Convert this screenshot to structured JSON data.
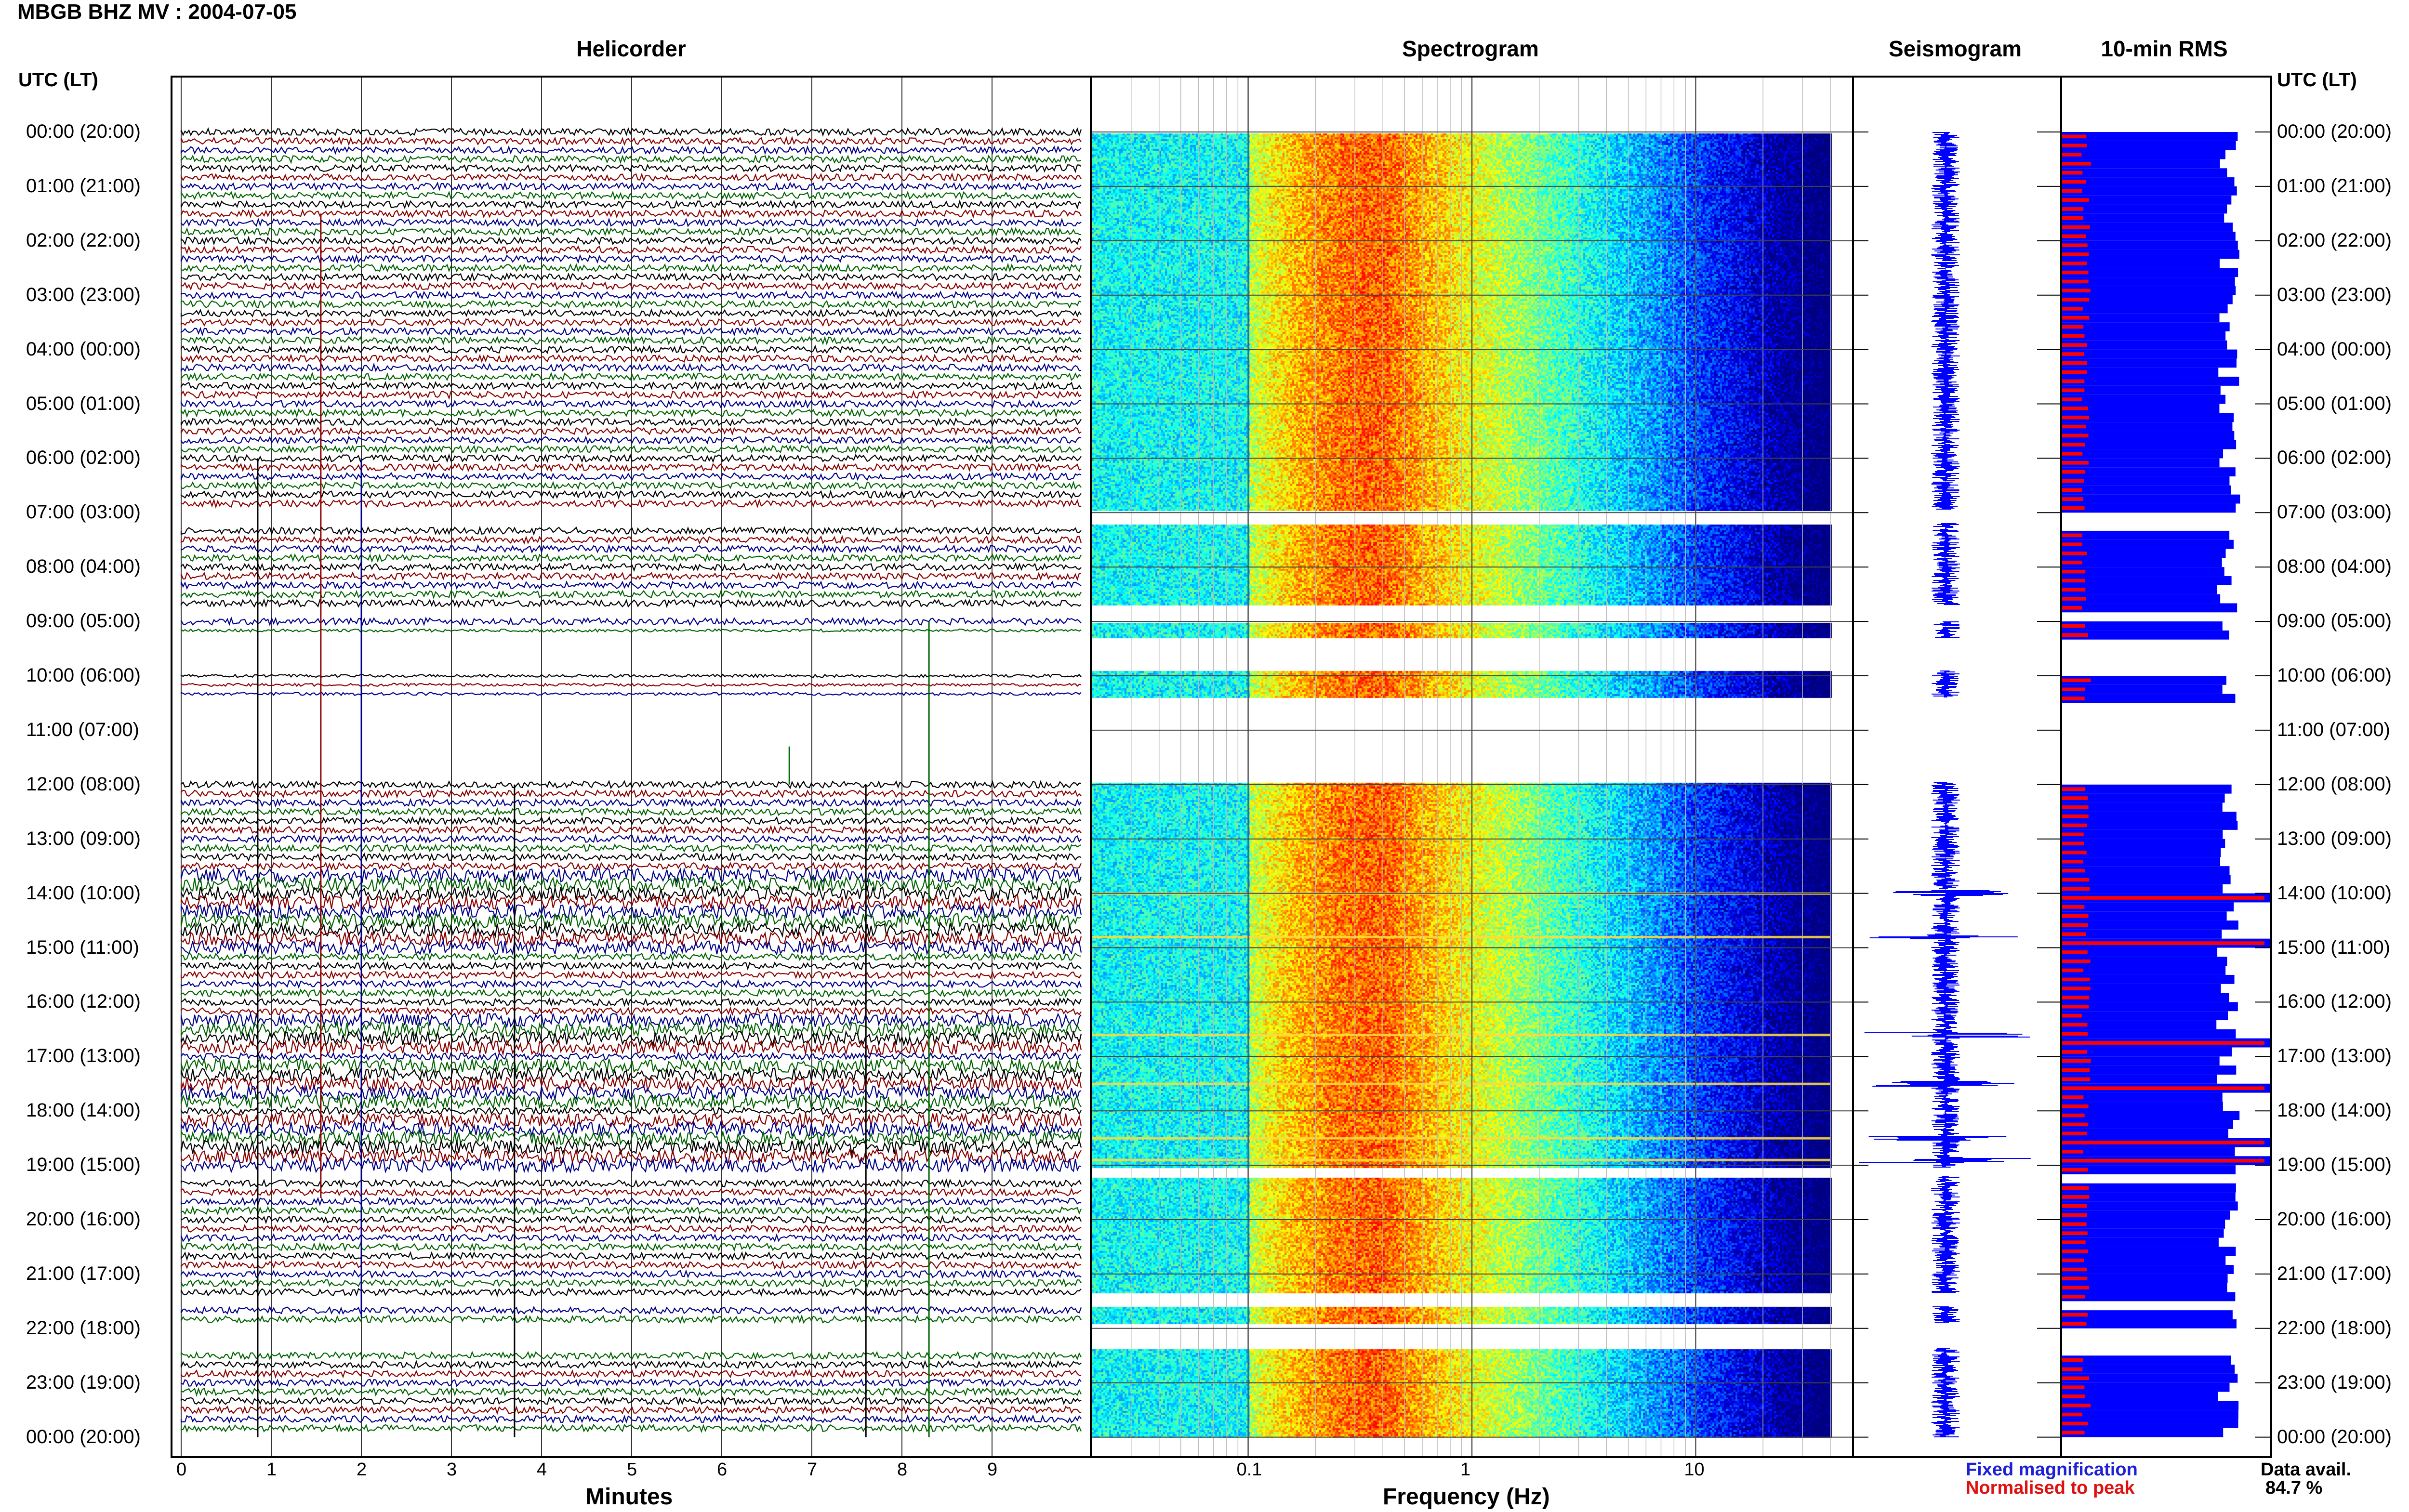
{
  "title": "MBGB BHZ MV : 2004-07-05",
  "panels": {
    "helicorder": "Helicorder",
    "spectrogram": "Spectrogram",
    "seismogram": "Seismogram",
    "rms": "10-min RMS"
  },
  "utc_header_left": "UTC (LT)",
  "utc_header_right": "UTC (LT)",
  "hour_labels": [
    "00:00 (20:00)",
    "01:00 (21:00)",
    "02:00 (22:00)",
    "03:00 (23:00)",
    "04:00 (00:00)",
    "05:00 (01:00)",
    "06:00 (02:00)",
    "07:00 (03:00)",
    "08:00 (04:00)",
    "09:00 (05:00)",
    "10:00 (06:00)",
    "11:00 (07:00)",
    "12:00 (08:00)",
    "13:00 (09:00)",
    "14:00 (10:00)",
    "15:00 (11:00)",
    "16:00 (12:00)",
    "17:00 (13:00)",
    "18:00 (14:00)",
    "19:00 (15:00)",
    "20:00 (16:00)",
    "21:00 (17:00)",
    "22:00 (18:00)",
    "23:00 (19:00)",
    "00:00 (20:00)"
  ],
  "minutes_axis": {
    "label": "Minutes",
    "ticks": [
      "0",
      "1",
      "2",
      "3",
      "4",
      "5",
      "6",
      "7",
      "8",
      "9"
    ]
  },
  "frequency_axis": {
    "label": "Frequency (Hz)",
    "ticks": [
      "0.1",
      "1",
      "10"
    ]
  },
  "legend": {
    "fixed": "Fixed magnification",
    "normalised": "Normalised to peak"
  },
  "availability": {
    "label": "Data avail.",
    "value": "84.7 %"
  },
  "colors": {
    "trace_cycle": [
      "#000000",
      "#8b0000",
      "#00008b",
      "#006400"
    ],
    "rms_fixed": "#0000ff",
    "rms_normalised": "#ff0000"
  },
  "chart_data": {
    "type": "heatmap",
    "station": "MBGB BHZ MV",
    "date": "2004-07-05",
    "helicorder": {
      "x_range_minutes": [
        0,
        10
      ],
      "rows_per_hour": 6,
      "total_rows": 144
    },
    "data_gaps_utc_hours": [
      [
        6.95,
        7.2
      ],
      [
        8.7,
        9.0
      ],
      [
        9.3,
        9.9
      ],
      [
        10.4,
        11.95
      ],
      [
        19.05,
        19.2
      ],
      [
        21.35,
        21.6
      ],
      [
        21.9,
        22.35
      ]
    ],
    "spectrogram": {
      "freq_range_hz": [
        0.02,
        50
      ],
      "log_scale": true
    },
    "rms_10min": {
      "fixed_magnification_high_hours": [
        14.0,
        14.8,
        16.6,
        17.5,
        18.5,
        18.9
      ],
      "normalised_peaks_hours": [
        14.0,
        14.8,
        16.6,
        17.5,
        18.5,
        18.9
      ]
    },
    "data_availability_percent": 84.7
  }
}
